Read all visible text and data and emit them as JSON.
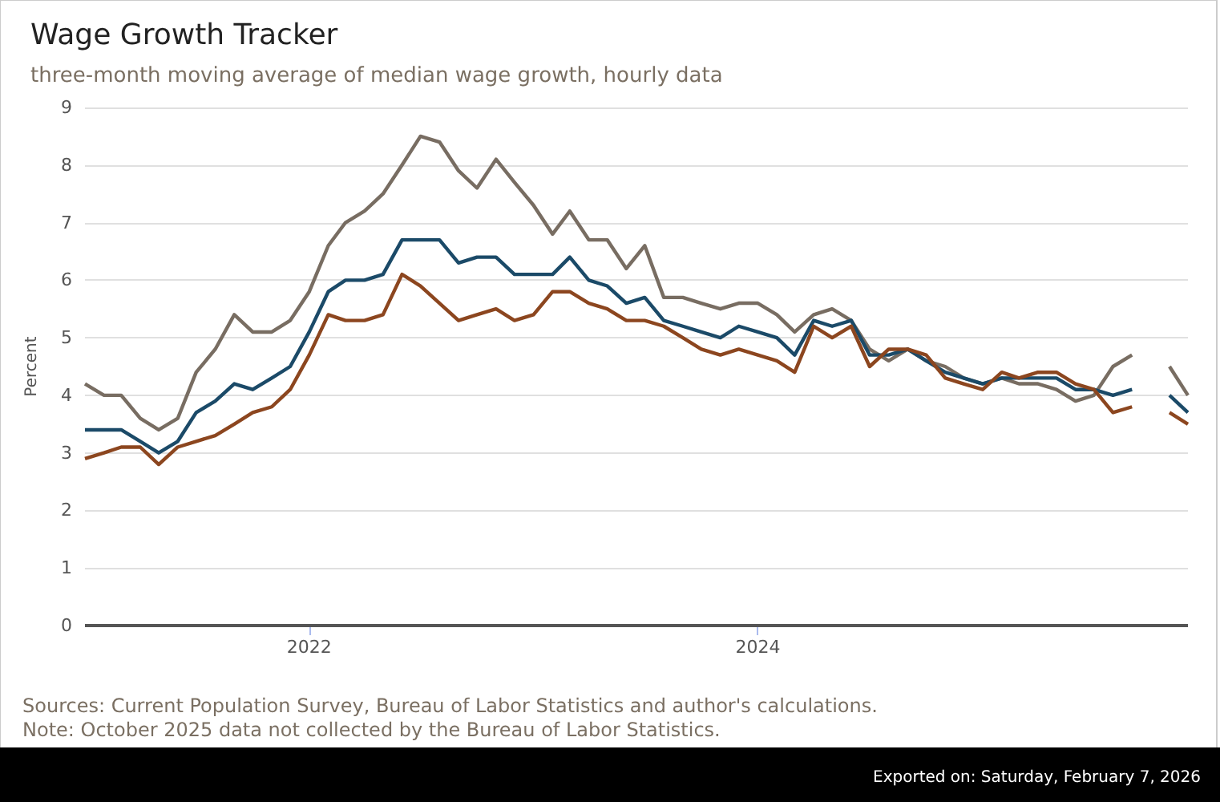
{
  "chart_data": {
    "type": "line",
    "title": "Wage Growth Tracker",
    "subtitle": "three-month moving average of median wage growth, hourly data",
    "ylabel": "Percent",
    "x": [
      "2021-01",
      "2021-02",
      "2021-03",
      "2021-04",
      "2021-05",
      "2021-06",
      "2021-07",
      "2021-08",
      "2021-09",
      "2021-10",
      "2021-11",
      "2021-12",
      "2022-01",
      "2022-02",
      "2022-03",
      "2022-04",
      "2022-05",
      "2022-06",
      "2022-07",
      "2022-08",
      "2022-09",
      "2022-10",
      "2022-11",
      "2022-12",
      "2023-01",
      "2023-02",
      "2023-03",
      "2023-04",
      "2023-05",
      "2023-06",
      "2023-07",
      "2023-08",
      "2023-09",
      "2023-10",
      "2023-11",
      "2023-12",
      "2024-01",
      "2024-02",
      "2024-03",
      "2024-04",
      "2024-05",
      "2024-06",
      "2024-07",
      "2024-08",
      "2024-09",
      "2024-10",
      "2024-11",
      "2024-12",
      "2025-01",
      "2025-02",
      "2025-03",
      "2025-04",
      "2025-05",
      "2025-06",
      "2025-07",
      "2025-08",
      "2025-09",
      "2025-10",
      "2025-11",
      "2025-12"
    ],
    "series": [
      {
        "color": "#786d62",
        "values": [
          4.2,
          4.0,
          4.0,
          3.6,
          3.4,
          3.6,
          4.4,
          4.8,
          5.4,
          5.1,
          5.1,
          5.3,
          5.8,
          6.6,
          7.0,
          7.2,
          7.5,
          8.0,
          8.5,
          8.4,
          7.9,
          7.6,
          8.1,
          7.7,
          7.3,
          6.8,
          7.2,
          6.7,
          6.7,
          6.2,
          6.6,
          5.7,
          5.7,
          5.6,
          5.5,
          5.6,
          5.6,
          5.4,
          5.1,
          5.4,
          5.5,
          5.3,
          4.8,
          4.6,
          4.8,
          4.6,
          4.5,
          4.3,
          4.2,
          4.3,
          4.2,
          4.2,
          4.1,
          3.9,
          4.0,
          4.5,
          4.7,
          null,
          4.5,
          4.0
        ]
      },
      {
        "color": "#1b4a68",
        "values": [
          3.4,
          3.4,
          3.4,
          3.2,
          3.0,
          3.2,
          3.7,
          3.9,
          4.2,
          4.1,
          4.3,
          4.5,
          5.1,
          5.8,
          6.0,
          6.0,
          6.1,
          6.7,
          6.7,
          6.7,
          6.3,
          6.4,
          6.4,
          6.1,
          6.1,
          6.1,
          6.4,
          6.0,
          5.9,
          5.6,
          5.7,
          5.3,
          5.2,
          5.1,
          5.0,
          5.2,
          5.1,
          5.0,
          4.7,
          5.3,
          5.2,
          5.3,
          4.7,
          4.7,
          4.8,
          4.6,
          4.4,
          4.3,
          4.2,
          4.3,
          4.3,
          4.3,
          4.3,
          4.1,
          4.1,
          4.0,
          4.1,
          null,
          4.0,
          3.7
        ]
      },
      {
        "color": "#8c461f",
        "values": [
          2.9,
          3.0,
          3.1,
          3.1,
          2.8,
          3.1,
          3.2,
          3.3,
          3.5,
          3.7,
          3.8,
          4.1,
          4.7,
          5.4,
          5.3,
          5.3,
          5.4,
          6.1,
          5.9,
          5.6,
          5.3,
          5.4,
          5.5,
          5.3,
          5.4,
          5.8,
          5.8,
          5.6,
          5.5,
          5.3,
          5.3,
          5.2,
          5.0,
          4.8,
          4.7,
          4.8,
          4.7,
          4.6,
          4.4,
          5.2,
          5.0,
          5.2,
          4.5,
          4.8,
          4.8,
          4.7,
          4.3,
          4.2,
          4.1,
          4.4,
          4.3,
          4.4,
          4.4,
          4.2,
          4.1,
          3.7,
          3.8,
          null,
          3.7,
          3.5
        ]
      }
    ],
    "xlim": [
      "2021-01",
      "2025-12"
    ],
    "xticks": [
      {
        "value": "2022-01",
        "label": "2022"
      },
      {
        "value": "2024-01",
        "label": "2024"
      }
    ],
    "ylim": [
      0,
      9
    ],
    "yticks": [
      0,
      1,
      2,
      3,
      4,
      5,
      6,
      7,
      8,
      9
    ],
    "grid": "y",
    "annotations": [
      "Sources: Current Population Survey, Bureau of Labor Statistics and author's calculations.",
      "Note: October 2025 data not collected by the Bureau of Labor Statistics.",
      "Exported on: Saturday, February 7, 2026"
    ]
  }
}
